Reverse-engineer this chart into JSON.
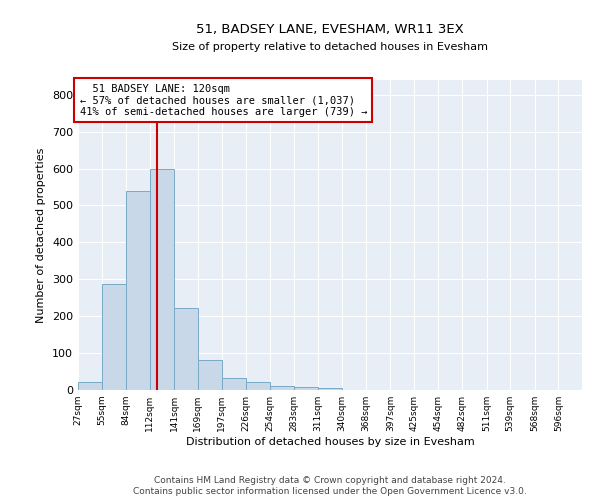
{
  "title": "51, BADSEY LANE, EVESHAM, WR11 3EX",
  "subtitle": "Size of property relative to detached houses in Evesham",
  "xlabel": "Distribution of detached houses by size in Evesham",
  "ylabel": "Number of detached properties",
  "footer_line1": "Contains HM Land Registry data © Crown copyright and database right 2024.",
  "footer_line2": "Contains public sector information licensed under the Open Government Licence v3.0.",
  "annotation_line1": "  51 BADSEY LANE: 120sqm",
  "annotation_line2": "← 57% of detached houses are smaller (1,037)",
  "annotation_line3": "41% of semi-detached houses are larger (739) →",
  "bar_color": "#c8d8e8",
  "bar_edge_color": "#7aaac8",
  "background_color": "#e8eef6",
  "vline_color": "#cc0000",
  "vline_position": 120,
  "categories": [
    "27sqm",
    "55sqm",
    "84sqm",
    "112sqm",
    "141sqm",
    "169sqm",
    "197sqm",
    "226sqm",
    "254sqm",
    "283sqm",
    "311sqm",
    "340sqm",
    "368sqm",
    "397sqm",
    "425sqm",
    "454sqm",
    "482sqm",
    "511sqm",
    "539sqm",
    "568sqm",
    "596sqm"
  ],
  "values": [
    22,
    288,
    540,
    598,
    222,
    80,
    33,
    22,
    11,
    8,
    5,
    0,
    0,
    0,
    0,
    0,
    0,
    0,
    0,
    0,
    0
  ],
  "bin_edges": [
    27,
    55,
    84,
    112,
    141,
    169,
    197,
    226,
    254,
    283,
    311,
    340,
    368,
    397,
    425,
    454,
    482,
    511,
    539,
    568,
    596,
    624
  ],
  "ylim": [
    0,
    840
  ],
  "yticks": [
    0,
    100,
    200,
    300,
    400,
    500,
    600,
    700,
    800
  ]
}
